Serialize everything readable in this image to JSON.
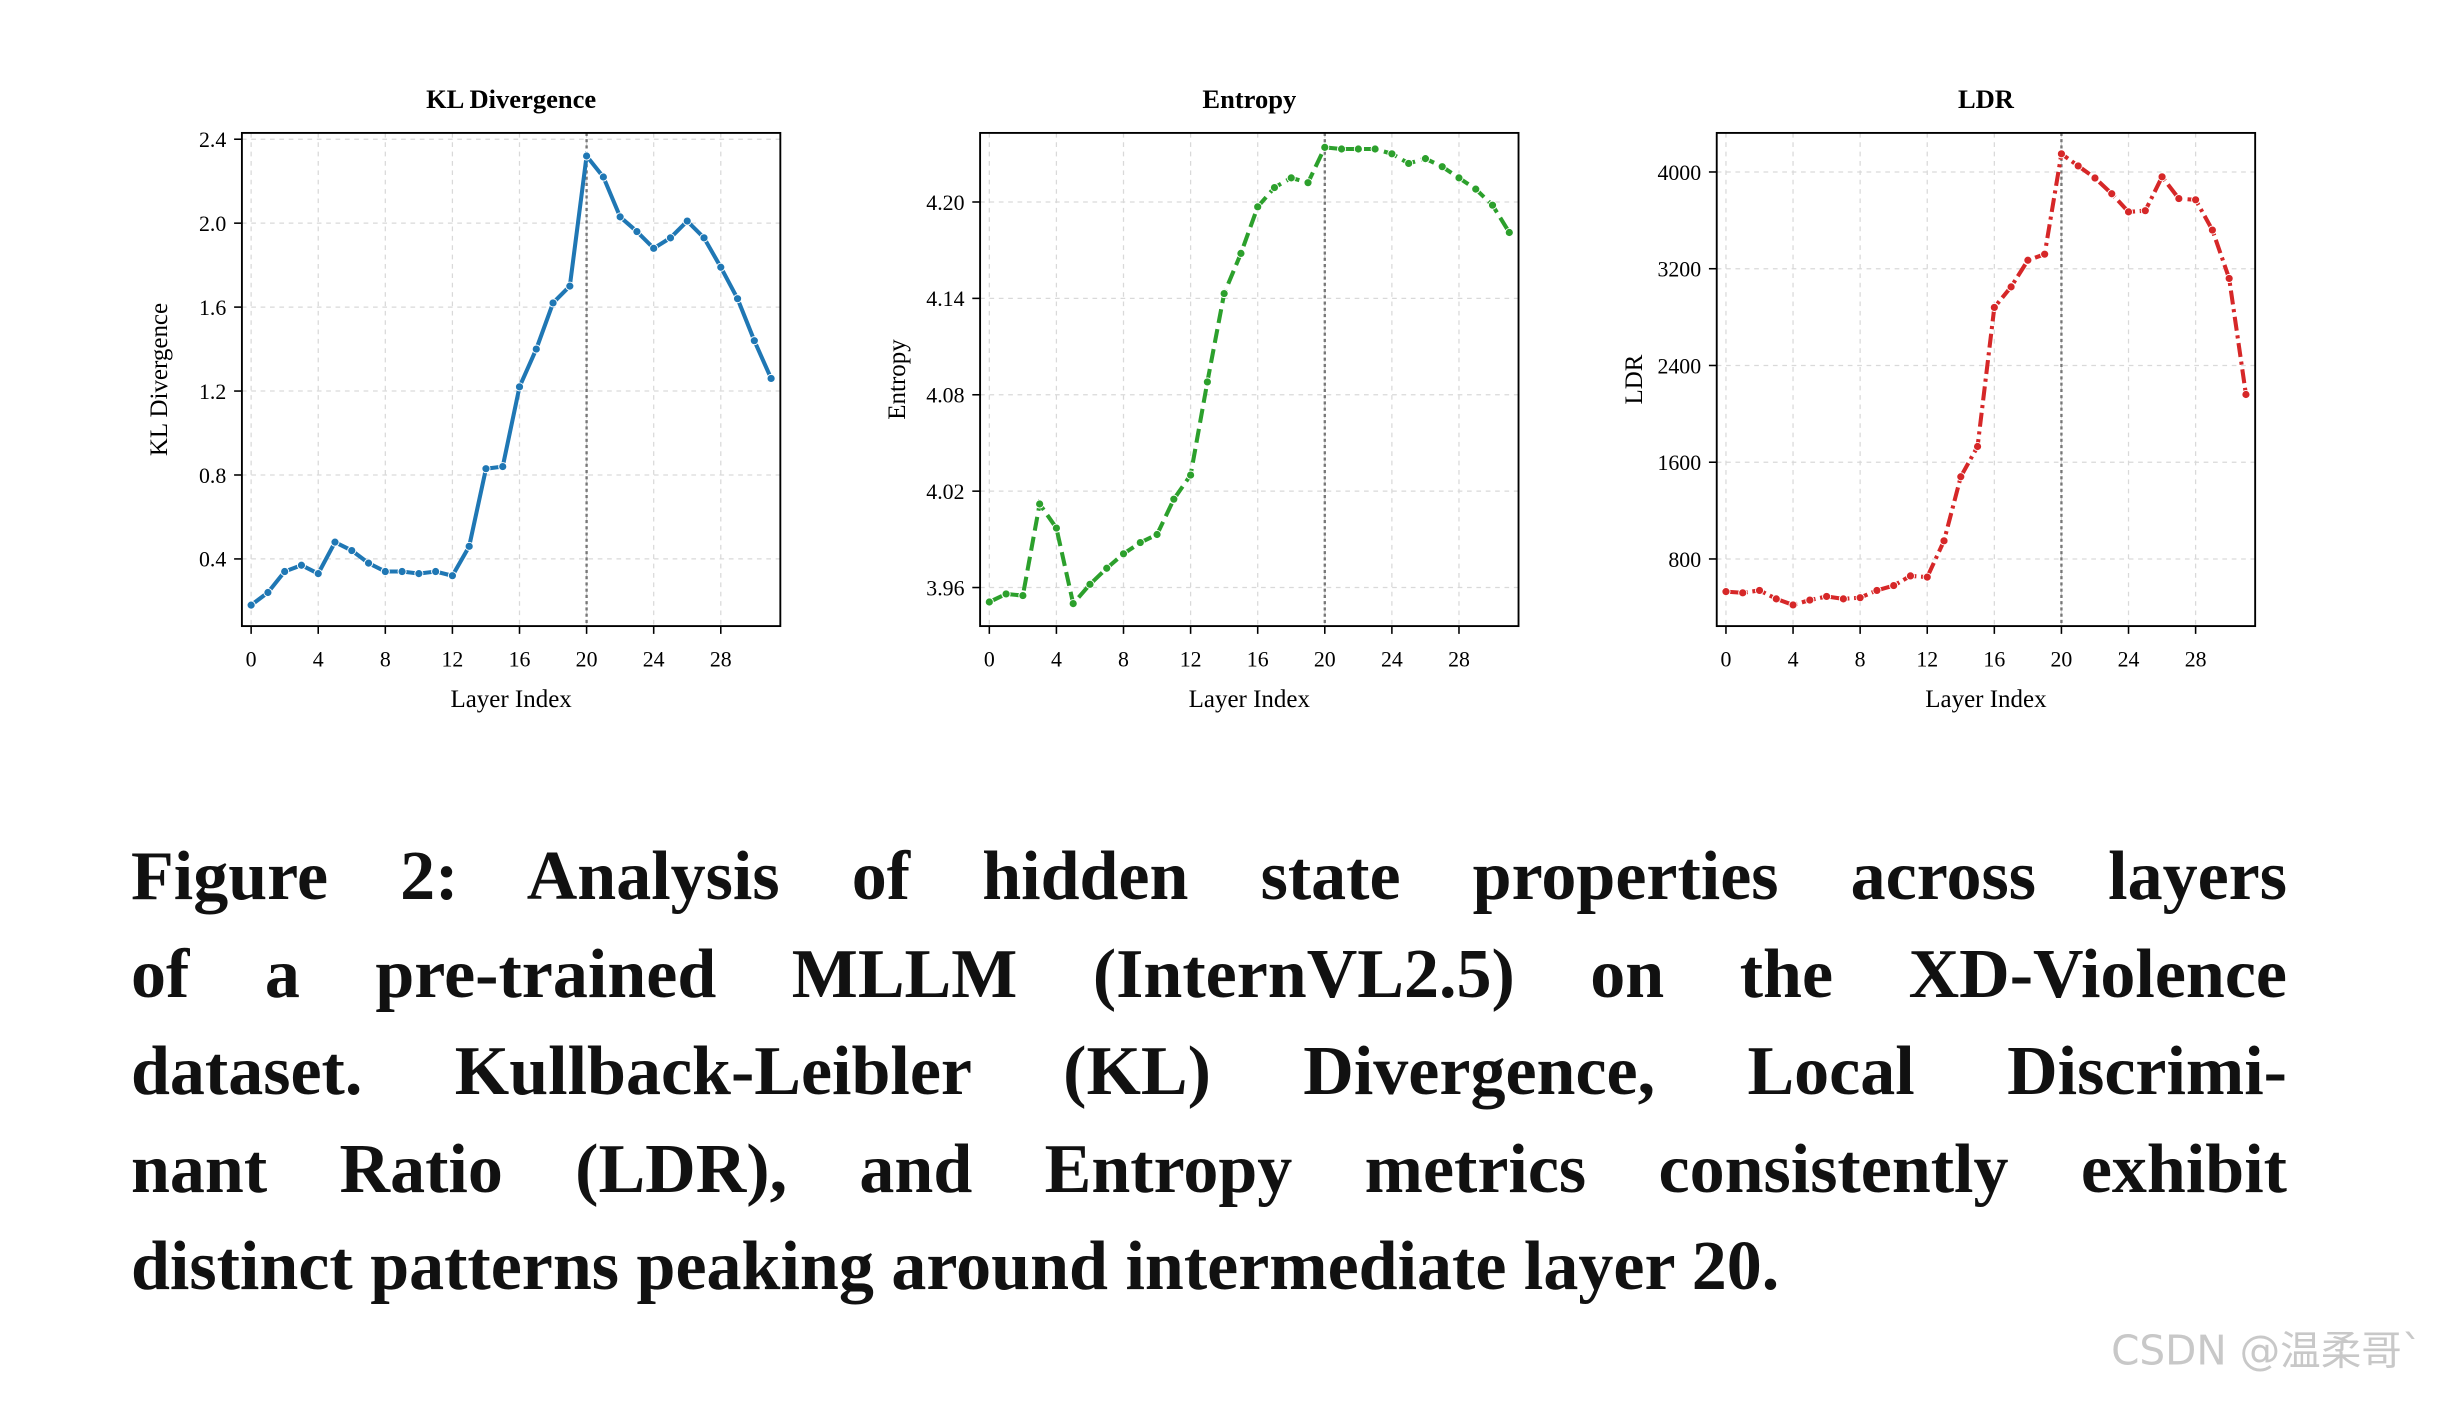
{
  "chart_data": [
    {
      "type": "line",
      "title": "KL Divergence",
      "xlabel": "Layer Index",
      "ylabel": "KL Divergence",
      "color": "#1f77b4",
      "linestyle": "solid",
      "x": [
        0,
        1,
        2,
        3,
        4,
        5,
        6,
        7,
        8,
        9,
        10,
        11,
        12,
        13,
        14,
        15,
        16,
        17,
        18,
        19,
        20,
        21,
        22,
        23,
        24,
        25,
        26,
        27,
        28,
        29,
        30,
        31
      ],
      "values": [
        0.18,
        0.24,
        0.34,
        0.37,
        0.33,
        0.48,
        0.44,
        0.38,
        0.34,
        0.34,
        0.33,
        0.34,
        0.32,
        0.46,
        0.83,
        0.84,
        1.22,
        1.4,
        1.62,
        1.7,
        2.32,
        2.22,
        2.03,
        1.96,
        1.88,
        1.93,
        2.01,
        1.93,
        1.79,
        1.64,
        1.44,
        1.26
      ],
      "xlim": [
        -0.55,
        31.55
      ],
      "ylim": [
        0.08,
        2.43
      ],
      "xticks": [
        0,
        4,
        8,
        12,
        16,
        20,
        24,
        28
      ],
      "yticks": [
        0.4,
        0.8,
        1.2,
        1.6,
        {
          "value": 2,
          "label": "2.0"
        },
        2.4
      ],
      "grid": true,
      "vline": 20
    },
    {
      "type": "line",
      "title": "Entropy",
      "xlabel": "Layer Index",
      "ylabel": "Entropy",
      "color": "#2ca02c",
      "linestyle": "dashed",
      "x": [
        0,
        1,
        2,
        3,
        4,
        5,
        6,
        7,
        8,
        9,
        10,
        11,
        12,
        13,
        14,
        15,
        16,
        17,
        18,
        19,
        20,
        21,
        22,
        23,
        24,
        25,
        26,
        27,
        28,
        29,
        30,
        31
      ],
      "values": [
        3.951,
        3.956,
        3.955,
        4.012,
        3.997,
        3.95,
        3.962,
        3.972,
        3.981,
        3.988,
        3.993,
        4.015,
        4.03,
        4.088,
        4.143,
        4.168,
        4.197,
        4.209,
        4.215,
        4.212,
        4.234,
        4.233,
        4.233,
        4.233,
        4.23,
        4.224,
        4.227,
        4.222,
        4.215,
        4.208,
        4.198,
        4.181
      ],
      "xlim": [
        -0.55,
        31.55
      ],
      "ylim": [
        3.936,
        4.243
      ],
      "xticks": [
        0,
        4,
        8,
        12,
        16,
        20,
        24,
        28
      ],
      "yticks": [
        3.96,
        4.02,
        4.08,
        4.14,
        {
          "value": 4.2,
          "label": "4.20"
        }
      ],
      "grid": true,
      "vline": 20
    },
    {
      "type": "line",
      "title": "LDR",
      "xlabel": "Layer Index",
      "ylabel": "LDR",
      "color": "#d62728",
      "linestyle": "dashdot",
      "x": [
        0,
        1,
        2,
        3,
        4,
        5,
        6,
        7,
        8,
        9,
        10,
        11,
        12,
        13,
        14,
        15,
        16,
        17,
        18,
        19,
        20,
        21,
        22,
        23,
        24,
        25,
        26,
        27,
        28,
        29,
        30,
        31
      ],
      "values": [
        530,
        520,
        540,
        470,
        420,
        460,
        490,
        470,
        480,
        540,
        580,
        660,
        650,
        950,
        1480,
        1730,
        2880,
        3050,
        3270,
        3320,
        4150,
        4050,
        3950,
        3820,
        3670,
        3680,
        3960,
        3780,
        3770,
        3520,
        3120,
        2160
      ],
      "xlim": [
        -0.55,
        31.55
      ],
      "ylim": [
        245,
        4323
      ],
      "xticks": [
        0,
        4,
        8,
        12,
        16,
        20,
        24,
        28
      ],
      "yticks": [
        800,
        1600,
        2400,
        3200,
        4000
      ],
      "grid": true,
      "vline": 20
    }
  ],
  "caption": [
    "Figure 2: Analysis of hidden state properties across layers",
    "of a pre-trained MLLM (InternVL2.5) on the XD-Violence",
    "dataset. Kullback-Leibler (KL) Divergence, Local Discrimi-",
    "nant Ratio (LDR), and Entropy metrics consistently exhibit",
    "distinct patterns peaking around intermediate layer 20."
  ],
  "watermark": "CSDN @温柔哥`"
}
